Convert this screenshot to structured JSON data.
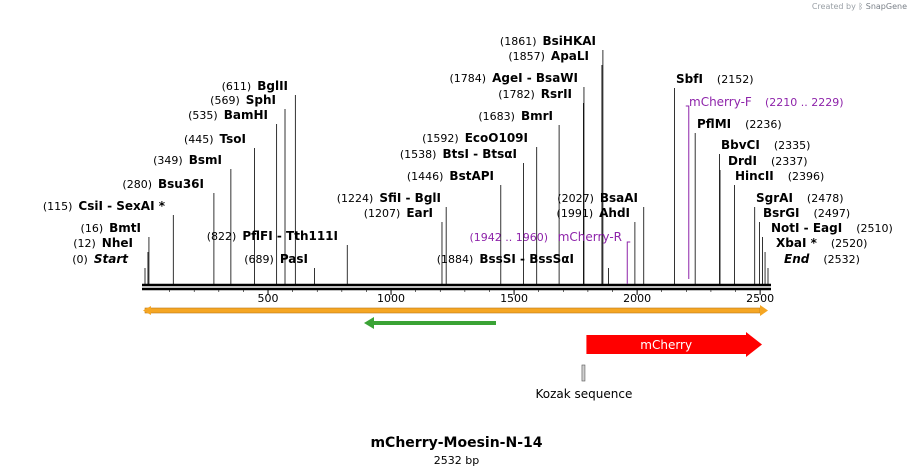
{
  "credit": {
    "prefix": "Created by",
    "brand": "SnapGene"
  },
  "map": {
    "title": "mCherry-Moesin-N-14",
    "subtitle": "2532 bp",
    "length_bp": 2532,
    "axis_ticks": [
      500,
      1000,
      1500,
      2000,
      2500
    ],
    "colors": {
      "backbone": "#000000",
      "primer": "#8e24aa",
      "mcherry_feature": "#ff0000",
      "orange_bar": "#f5a623",
      "green_arrow": "#3aa335",
      "label": "#000000"
    },
    "sites": [
      {
        "pos": "(0)",
        "name": "Start",
        "bp": 0,
        "italic": true
      },
      {
        "pos": "(12)",
        "name": "NheI",
        "bp": 12
      },
      {
        "pos": "(16)",
        "name": "BmtI",
        "bp": 16
      },
      {
        "pos": "(115)",
        "name": "CsiI  - SexAI *",
        "bp": 115
      },
      {
        "pos": "(280)",
        "name": "Bsu36I",
        "bp": 280
      },
      {
        "pos": "(349)",
        "name": "BsmI",
        "bp": 349
      },
      {
        "pos": "(445)",
        "name": "TsoI",
        "bp": 445
      },
      {
        "pos": "(535)",
        "name": "BamHI",
        "bp": 535
      },
      {
        "pos": "(569)",
        "name": "SphI",
        "bp": 569
      },
      {
        "pos": "(611)",
        "name": "BglII",
        "bp": 611
      },
      {
        "pos": "(689)",
        "name": "PasI",
        "bp": 689
      },
      {
        "pos": "(822)",
        "name": "PflFI  - Tth111I",
        "bp": 822
      },
      {
        "pos": "(1207)",
        "name": "EarI",
        "bp": 1207
      },
      {
        "pos": "(1224)",
        "name": "SfiI  - BglI",
        "bp": 1224
      },
      {
        "pos": "(1446)",
        "name": "BstAPI",
        "bp": 1446
      },
      {
        "pos": "(1538)",
        "name": "BtsI  - BtsαI",
        "bp": 1538
      },
      {
        "pos": "(1592)",
        "name": "EcoO109I",
        "bp": 1592
      },
      {
        "pos": "(1683)",
        "name": "BmrI",
        "bp": 1683
      },
      {
        "pos": "(1782)",
        "name": "RsrII",
        "bp": 1782
      },
      {
        "pos": "(1784)",
        "name": "AgeI  - BsaWI",
        "bp": 1784
      },
      {
        "pos": "(1857)",
        "name": "ApaLI",
        "bp": 1857
      },
      {
        "pos": "(1861)",
        "name": "BsiHKAI",
        "bp": 1861
      },
      {
        "pos": "(1884)",
        "name": "BssSI  - BssSαI",
        "bp": 1884
      },
      {
        "pos": "(1991)",
        "name": "AhdI",
        "bp": 1991
      },
      {
        "pos": "(2027)",
        "name": "BsaAI",
        "bp": 2027
      },
      {
        "pos": "(2152)",
        "name": "SbfI",
        "bp": 2152,
        "pos_after": true
      },
      {
        "pos": "(2236)",
        "name": "PflMI",
        "bp": 2236,
        "pos_after": true
      },
      {
        "pos": "(2335)",
        "name": "BbvCI",
        "bp": 2335,
        "pos_after": true
      },
      {
        "pos": "(2337)",
        "name": "DrdI",
        "bp": 2337,
        "pos_after": true
      },
      {
        "pos": "(2396)",
        "name": "HincII",
        "bp": 2396,
        "pos_after": true
      },
      {
        "pos": "(2478)",
        "name": "SgrAI",
        "bp": 2478,
        "pos_after": true
      },
      {
        "pos": "(2497)",
        "name": "BsrGI",
        "bp": 2497,
        "pos_after": true
      },
      {
        "pos": "(2510)",
        "name": "NotI  - EagI",
        "bp": 2510,
        "pos_after": true
      },
      {
        "pos": "(2520)",
        "name": "XbaI *",
        "bp": 2520,
        "pos_after": true
      },
      {
        "pos": "(2532)",
        "name": "End",
        "bp": 2532,
        "pos_after": true,
        "italic": true
      }
    ],
    "primers": [
      {
        "name": "mCherry-F",
        "range": "(2210 .. 2229)",
        "start_bp": 2210,
        "end_bp": 2229
      },
      {
        "name": "mCherry-R",
        "range": "(1942 .. 1960)",
        "start_bp": 1942,
        "end_bp": 1960
      }
    ],
    "features": [
      {
        "name": "mCherry",
        "start_bp": 1794,
        "end_bp": 2532,
        "direction": "forward"
      },
      {
        "name": "Kozak sequence",
        "start_bp": 1784,
        "end_bp": 1793
      }
    ]
  }
}
